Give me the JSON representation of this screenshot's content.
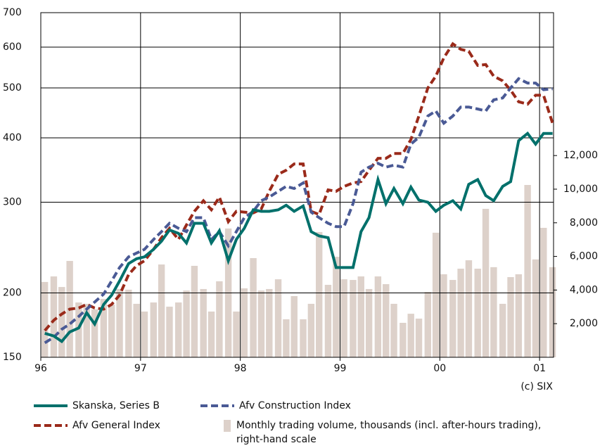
{
  "chart_data": {
    "type": "line",
    "source": "(c) SIX",
    "x": [
      1996.04,
      1996.13,
      1996.21,
      1996.29,
      1996.38,
      1996.46,
      1996.54,
      1996.63,
      1996.71,
      1996.79,
      1996.88,
      1996.96,
      1997.04,
      1997.13,
      1997.21,
      1997.29,
      1997.38,
      1997.46,
      1997.54,
      1997.63,
      1997.71,
      1997.79,
      1997.88,
      1997.96,
      1998.04,
      1998.13,
      1998.21,
      1998.29,
      1998.38,
      1998.46,
      1998.54,
      1998.63,
      1998.71,
      1998.79,
      1998.88,
      1998.96,
      1999.04,
      1999.13,
      1999.21,
      1999.29,
      1999.38,
      1999.46,
      1999.54,
      1999.63,
      1999.71,
      1999.79,
      1999.88,
      1999.96,
      2000.04,
      2000.13,
      2000.21,
      2000.29,
      2000.38,
      2000.46,
      2000.54,
      2000.63,
      2000.71,
      2000.79,
      2000.88,
      2000.96,
      2001.04,
      2001.13
    ],
    "xlim": [
      1996,
      2001.14
    ],
    "xticks": [
      {
        "value": 1996,
        "label": "96"
      },
      {
        "value": 1997,
        "label": "97"
      },
      {
        "value": 1998,
        "label": "98"
      },
      {
        "value": 1999,
        "label": "99"
      },
      {
        "value": 2000,
        "label": "00"
      },
      {
        "value": 2001,
        "label": "01"
      }
    ],
    "ylim": [
      150,
      700
    ],
    "log_scale": true,
    "yticks": [
      150,
      200,
      300,
      400,
      500,
      600,
      700
    ],
    "y2lim": [
      0,
      20500
    ],
    "y2ticks": [
      {
        "value": 2000,
        "label": "2,000"
      },
      {
        "value": 4000,
        "label": "4,000"
      },
      {
        "value": 6000,
        "label": "6,000"
      },
      {
        "value": 8000,
        "label": "8,000"
      },
      {
        "value": 10000,
        "label": "10,000"
      },
      {
        "value": 12000,
        "label": "12,000"
      }
    ],
    "grid": true,
    "series": [
      {
        "name": "Skanska, Series B",
        "color": "#00706b",
        "style": "solid",
        "values": [
          167,
          165,
          161,
          168,
          171,
          183,
          174,
          190,
          198,
          211,
          228,
          233,
          235,
          243,
          252,
          265,
          261,
          250,
          273,
          273,
          250,
          264,
          231,
          254,
          267,
          290,
          288,
          288,
          290,
          296,
          288,
          295,
          263,
          258,
          256,
          224,
          224,
          224,
          263,
          280,
          332,
          298,
          319,
          298,
          321,
          303,
          300,
          288,
          296,
          302,
          291,
          325,
          332,
          309,
          302,
          322,
          329,
          395,
          408,
          389,
          408,
          408
        ]
      },
      {
        "name": "Afv Construction Index",
        "color": "#4a5a95",
        "style": "dashed",
        "values": [
          160,
          164,
          170,
          174,
          180,
          186,
          192,
          199,
          211,
          224,
          235,
          239,
          243,
          254,
          263,
          273,
          267,
          263,
          280,
          280,
          254,
          263,
          247,
          263,
          280,
          288,
          302,
          307,
          315,
          322,
          319,
          327,
          287,
          280,
          273,
          269,
          269,
          298,
          343,
          351,
          357,
          351,
          354,
          351,
          389,
          401,
          441,
          451,
          427,
          441,
          459,
          459,
          455,
          451,
          474,
          478,
          500,
          521,
          511,
          511,
          496,
          498
        ]
      },
      {
        "name": "Afv General Index",
        "color": "#9a2a1a",
        "style": "dashed",
        "values": [
          169,
          177,
          182,
          186,
          187,
          190,
          187,
          186,
          190,
          198,
          217,
          226,
          231,
          243,
          256,
          267,
          254,
          271,
          288,
          302,
          290,
          307,
          275,
          288,
          287,
          286,
          291,
          315,
          340,
          346,
          356,
          356,
          288,
          284,
          317,
          315,
          322,
          327,
          329,
          346,
          365,
          365,
          373,
          373,
          397,
          441,
          500,
          527,
          572,
          609,
          594,
          589,
          553,
          555,
          527,
          516,
          495,
          470,
          465,
          484,
          484,
          427
        ]
      },
      {
        "name": "Monthly trading volume, thousands (incl. after-hours trading), right-hand scale",
        "color": "#ddd1ca",
        "type": "bar",
        "axis": "y2",
        "values": [
          4480,
          4810,
          4180,
          5730,
          3260,
          3180,
          2850,
          3470,
          3140,
          4060,
          4020,
          3180,
          2720,
          3260,
          5520,
          3010,
          3260,
          3970,
          5440,
          4060,
          2720,
          4520,
          7660,
          2720,
          4100,
          5900,
          3970,
          4060,
          4640,
          2260,
          3640,
          2260,
          3180,
          7450,
          4310,
          5980,
          4640,
          4600,
          4810,
          4060,
          4810,
          4350,
          3180,
          2050,
          2590,
          2300,
          3890,
          7410,
          4940,
          4600,
          5270,
          5770,
          5270,
          8830,
          5360,
          3180,
          4770,
          4940,
          10250,
          5820,
          7700,
          5360
        ]
      }
    ]
  }
}
